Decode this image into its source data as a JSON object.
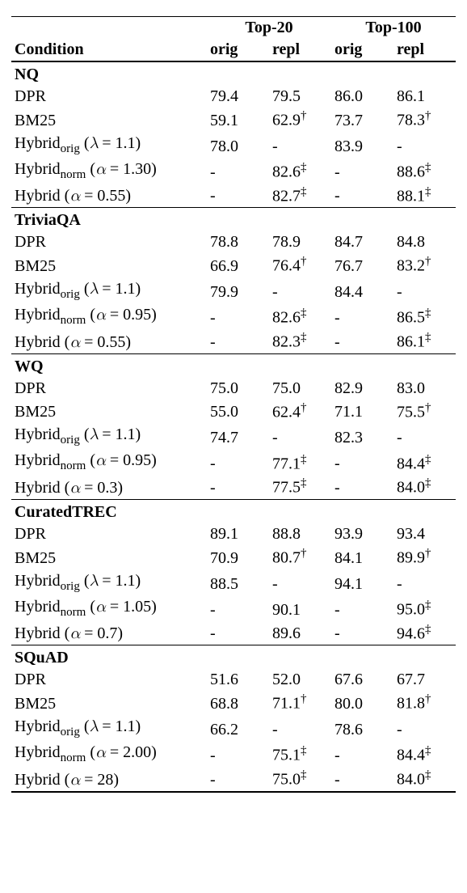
{
  "headers": {
    "condition": "Condition",
    "top20": "Top-20",
    "top100": "Top-100",
    "orig": "orig",
    "repl": "repl"
  },
  "sections": [
    {
      "name": "NQ",
      "rows": [
        {
          "cond_html": "DPR",
          "t20o": "79.4",
          "t20r": "79.5",
          "t100o": "86.0",
          "t100r": "86.1"
        },
        {
          "cond_html": "BM25",
          "t20o": "59.1",
          "t20r": "62.9<span class='sup'>†</span>",
          "t100o": "73.7",
          "t100r": "78.3<span class='sup'>†</span>"
        },
        {
          "cond_html": "Hybrid<span class='sub'>orig</span> (<span class='cmu'>λ</span> = 1.1)",
          "t20o": "78.0",
          "t20r": "-",
          "t100o": "83.9",
          "t100r": "-"
        },
        {
          "cond_html": "Hybrid<span class='sub'>norm</span> (<span class='cmu'>α</span> = 1.30)",
          "t20o": "-",
          "t20r": "82.6<span class='sup'>‡</span>",
          "t100o": "-",
          "t100r": "88.6<span class='sup'>‡</span>"
        },
        {
          "cond_html": "Hybrid (<span class='cmu'>α</span> = 0.55)",
          "t20o": "-",
          "t20r": "82.7<span class='sup'>‡</span>",
          "t100o": "-",
          "t100r": "88.1<span class='sup'>‡</span>"
        }
      ]
    },
    {
      "name": "TriviaQA",
      "rows": [
        {
          "cond_html": "DPR",
          "t20o": "78.8",
          "t20r": "78.9",
          "t100o": "84.7",
          "t100r": "84.8"
        },
        {
          "cond_html": "BM25",
          "t20o": "66.9",
          "t20r": "76.4<span class='sup'>†</span>",
          "t100o": "76.7",
          "t100r": "83.2<span class='sup'>†</span>"
        },
        {
          "cond_html": "Hybrid<span class='sub'>orig</span> (<span class='cmu'>λ</span> = 1.1)",
          "t20o": "79.9",
          "t20r": "-",
          "t100o": "84.4",
          "t100r": "-"
        },
        {
          "cond_html": "Hybrid<span class='sub'>norm</span> (<span class='cmu'>α</span> = 0.95)",
          "t20o": "-",
          "t20r": "82.6<span class='sup'>‡</span>",
          "t100o": "-",
          "t100r": "86.5<span class='sup'>‡</span>"
        },
        {
          "cond_html": "Hybrid (<span class='cmu'>α</span> = 0.55)",
          "t20o": "-",
          "t20r": "82.3<span class='sup'>‡</span>",
          "t100o": "-",
          "t100r": "86.1<span class='sup'>‡</span>"
        }
      ]
    },
    {
      "name": "WQ",
      "rows": [
        {
          "cond_html": "DPR",
          "t20o": "75.0",
          "t20r": "75.0",
          "t100o": "82.9",
          "t100r": "83.0"
        },
        {
          "cond_html": "BM25",
          "t20o": "55.0",
          "t20r": "62.4<span class='sup'>†</span>",
          "t100o": "71.1",
          "t100r": "75.5<span class='sup'>†</span>"
        },
        {
          "cond_html": "Hybrid<span class='sub'>orig</span> (<span class='cmu'>λ</span> = 1.1)",
          "t20o": "74.7",
          "t20r": "-",
          "t100o": "82.3",
          "t100r": "-"
        },
        {
          "cond_html": "Hybrid<span class='sub'>norm</span> (<span class='cmu'>α</span> = 0.95)",
          "t20o": "-",
          "t20r": "77.1<span class='sup'>‡</span>",
          "t100o": "-",
          "t100r": "84.4<span class='sup'>‡</span>"
        },
        {
          "cond_html": "Hybrid (<span class='cmu'>α</span> = 0.3)",
          "t20o": "-",
          "t20r": "77.5<span class='sup'>‡</span>",
          "t100o": "-",
          "t100r": "84.0<span class='sup'>‡</span>"
        }
      ]
    },
    {
      "name": "CuratedTREC",
      "rows": [
        {
          "cond_html": "DPR",
          "t20o": "89.1",
          "t20r": "88.8",
          "t100o": "93.9",
          "t100r": "93.4"
        },
        {
          "cond_html": "BM25",
          "t20o": "70.9",
          "t20r": "80.7<span class='sup'>†</span>",
          "t100o": "84.1",
          "t100r": "89.9<span class='sup'>†</span>"
        },
        {
          "cond_html": "Hybrid<span class='sub'>orig</span> (<span class='cmu'>λ</span> = 1.1)",
          "t20o": "88.5",
          "t20r": "-",
          "t100o": "94.1",
          "t100r": "-"
        },
        {
          "cond_html": "Hybrid<span class='sub'>norm</span> (<span class='cmu'>α</span> = 1.05)",
          "t20o": "-",
          "t20r": "90.1",
          "t100o": "-",
          "t100r": "95.0<span class='sup'>‡</span>"
        },
        {
          "cond_html": "Hybrid (<span class='cmu'>α</span> = 0.7)",
          "t20o": "-",
          "t20r": "89.6",
          "t100o": "-",
          "t100r": "94.6<span class='sup'>‡</span>"
        }
      ]
    },
    {
      "name": "SQuAD",
      "rows": [
        {
          "cond_html": "DPR",
          "t20o": "51.6",
          "t20r": "52.0",
          "t100o": "67.6",
          "t100r": "67.7"
        },
        {
          "cond_html": "BM25",
          "t20o": "68.8",
          "t20r": "71.1<span class='sup'>†</span>",
          "t100o": "80.0",
          "t100r": "81.8<span class='sup'>†</span>"
        },
        {
          "cond_html": "Hybrid<span class='sub'>orig</span> (<span class='cmu'>λ</span> = 1.1)",
          "t20o": "66.2",
          "t20r": "-",
          "t100o": "78.6",
          "t100r": "-"
        },
        {
          "cond_html": "Hybrid<span class='sub'>norm</span> (<span class='cmu'>α</span> = 2.00)",
          "t20o": "-",
          "t20r": "75.1<span class='sup'>‡</span>",
          "t100o": "-",
          "t100r": "84.4<span class='sup'>‡</span>"
        },
        {
          "cond_html": "Hybrid (<span class='cmu'>α</span> = 28)",
          "t20o": "-",
          "t20r": "75.0<span class='sup'>‡</span>",
          "t100o": "-",
          "t100r": "84.0<span class='sup'>‡</span>"
        }
      ]
    }
  ]
}
